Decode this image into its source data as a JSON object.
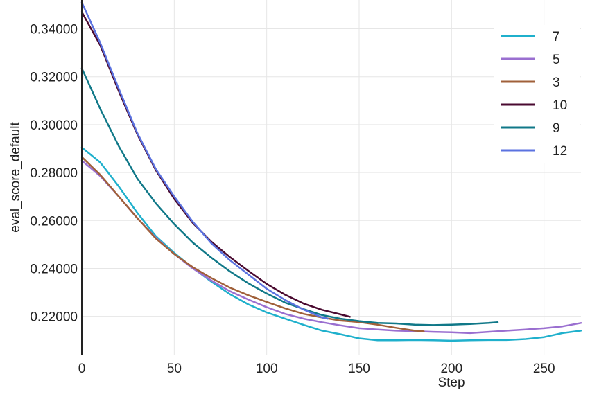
{
  "chart_data": {
    "type": "line",
    "title": "",
    "xlabel": "Step",
    "ylabel": "eval_score_default",
    "xlim": [
      0,
      270
    ],
    "ylim": [
      0.204,
      0.352
    ],
    "x_ticks": [
      0,
      50,
      100,
      150,
      200,
      250
    ],
    "y_ticks": [
      0.22,
      0.24,
      0.26,
      0.28,
      0.3,
      0.32,
      0.34
    ],
    "x_tick_labels": [
      "0",
      "50",
      "100",
      "150",
      "200",
      "250"
    ],
    "y_tick_labels": [
      "0.22000",
      "0.24000",
      "0.26000",
      "0.28000",
      "0.30000",
      "0.32000",
      "0.34000"
    ],
    "grid": true,
    "legend_position": "top-right",
    "series": [
      {
        "name": "7",
        "color": "#1fb0cc",
        "x": [
          0,
          10,
          20,
          30,
          40,
          50,
          60,
          70,
          80,
          90,
          100,
          110,
          120,
          130,
          140,
          150,
          160,
          170,
          180,
          190,
          200,
          210,
          220,
          230,
          240,
          250,
          260,
          270
        ],
        "y": [
          0.2905,
          0.2842,
          0.2742,
          0.2632,
          0.2535,
          0.2465,
          0.2402,
          0.2345,
          0.2293,
          0.225,
          0.2216,
          0.219,
          0.2164,
          0.214,
          0.2125,
          0.2108,
          0.21,
          0.21,
          0.2101,
          0.21,
          0.2098,
          0.21,
          0.2101,
          0.2101,
          0.2105,
          0.2113,
          0.213,
          0.214
        ]
      },
      {
        "name": "5",
        "color": "#9a6fd0",
        "x": [
          0,
          10,
          20,
          30,
          40,
          50,
          60,
          70,
          80,
          90,
          100,
          110,
          120,
          130,
          140,
          150,
          160,
          170,
          180,
          190,
          200,
          210,
          220,
          230,
          240,
          250,
          260,
          270
        ],
        "y": [
          0.285,
          0.2785,
          0.27,
          0.261,
          0.2528,
          0.246,
          0.24,
          0.235,
          0.2305,
          0.227,
          0.2238,
          0.221,
          0.219,
          0.2175,
          0.2162,
          0.215,
          0.2145,
          0.214,
          0.2138,
          0.2135,
          0.2133,
          0.213,
          0.2135,
          0.214,
          0.2145,
          0.215,
          0.2158,
          0.2172
        ]
      },
      {
        "name": "3",
        "color": "#a0603a",
        "x": [
          0,
          10,
          20,
          30,
          40,
          50,
          60,
          70,
          80,
          90,
          100,
          110,
          120,
          130,
          140,
          150,
          160,
          170,
          180,
          185
        ],
        "y": [
          0.2865,
          0.279,
          0.27,
          0.261,
          0.2525,
          0.246,
          0.2405,
          0.236,
          0.232,
          0.2288,
          0.226,
          0.2233,
          0.221,
          0.2195,
          0.2182,
          0.2176,
          0.2165,
          0.2152,
          0.214,
          0.2137
        ]
      },
      {
        "name": "10",
        "color": "#4a0a30",
        "x": [
          0,
          10,
          20,
          30,
          40,
          50,
          60,
          70,
          80,
          90,
          100,
          110,
          120,
          130,
          140,
          145
        ],
        "y": [
          0.347,
          0.333,
          0.314,
          0.296,
          0.281,
          0.269,
          0.259,
          0.2512,
          0.2448,
          0.239,
          0.2335,
          0.229,
          0.2253,
          0.2227,
          0.2208,
          0.2198
        ]
      },
      {
        "name": "9",
        "color": "#107888",
        "x": [
          0,
          10,
          20,
          30,
          40,
          50,
          60,
          70,
          80,
          90,
          100,
          110,
          120,
          130,
          140,
          150,
          160,
          170,
          180,
          190,
          200,
          210,
          220,
          225
        ],
        "y": [
          0.3235,
          0.3065,
          0.291,
          0.2775,
          0.2672,
          0.2585,
          0.2508,
          0.2445,
          0.2388,
          0.2338,
          0.2295,
          0.2257,
          0.223,
          0.2205,
          0.219,
          0.218,
          0.2172,
          0.217,
          0.2165,
          0.2163,
          0.2165,
          0.2168,
          0.2172,
          0.2175
        ]
      },
      {
        "name": "12",
        "color": "#5b72e0",
        "x": [
          0,
          10,
          20,
          30,
          40,
          50,
          60,
          70,
          80,
          90,
          100,
          110,
          120,
          130,
          133
        ],
        "y": [
          0.351,
          0.334,
          0.315,
          0.2965,
          0.2815,
          0.27,
          0.2595,
          0.2505,
          0.2435,
          0.2375,
          0.2315,
          0.2268,
          0.2228,
          0.2195,
          0.219
        ]
      }
    ]
  }
}
